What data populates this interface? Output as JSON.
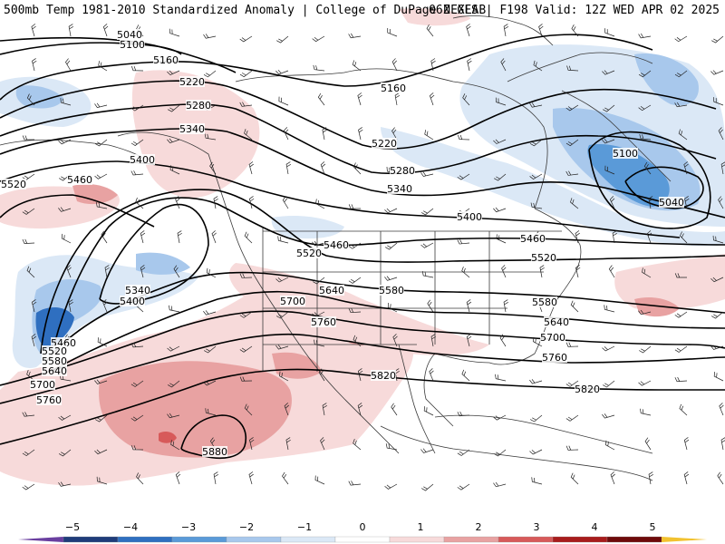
{
  "header": {
    "left": "500mb Temp 1981-2010 Standardized Anomaly | College of DuPage NEXLAB",
    "right": "06Z GFS | F198 Valid: 12Z WED APR 02 2025"
  },
  "colorbar": {
    "labels": [
      "−5",
      "−4",
      "−3",
      "−2",
      "−1",
      "0",
      "1",
      "2",
      "3",
      "4",
      "5"
    ],
    "colors": [
      "#6a3fa0",
      "#1f3c7a",
      "#2f6fc0",
      "#5a9ad8",
      "#a8c8ec",
      "#dbe8f6",
      "#ffffff",
      "#f7dada",
      "#e8a2a2",
      "#d75a5a",
      "#a81c1c",
      "#6e0a0a",
      "#f2c230"
    ]
  },
  "contours": [
    {
      "label": "5040"
    },
    {
      "label": "5100"
    },
    {
      "label": "5160"
    },
    {
      "label": "5220"
    },
    {
      "label": "5280"
    },
    {
      "label": "5340"
    },
    {
      "label": "5400"
    },
    {
      "label": "5460"
    },
    {
      "label": "5520"
    },
    {
      "label": "5580"
    },
    {
      "label": "5640"
    },
    {
      "label": "5700"
    },
    {
      "label": "5760"
    },
    {
      "label": "5820"
    },
    {
      "label": "5880"
    }
  ],
  "contour_labels": [
    {
      "text": "5040"
    },
    {
      "text": "5100"
    },
    {
      "text": "5160"
    },
    {
      "text": "5220"
    },
    {
      "text": "5280"
    },
    {
      "text": "5340"
    },
    {
      "text": "5400"
    },
    {
      "text": "5520"
    },
    {
      "text": "5460"
    },
    {
      "text": "5160"
    },
    {
      "text": "5220"
    },
    {
      "text": "5280"
    },
    {
      "text": "5340"
    },
    {
      "text": "5400"
    },
    {
      "text": "5460"
    },
    {
      "text": "5520"
    },
    {
      "text": "5580"
    },
    {
      "text": "5640"
    },
    {
      "text": "5700"
    },
    {
      "text": "5760"
    },
    {
      "text": "5820"
    },
    {
      "text": "5820"
    },
    {
      "text": "5880"
    },
    {
      "text": "5340"
    },
    {
      "text": "5400"
    },
    {
      "text": "5460"
    },
    {
      "text": "5520"
    },
    {
      "text": "5580"
    },
    {
      "text": "5640"
    },
    {
      "text": "5700"
    },
    {
      "text": "5760"
    },
    {
      "text": "5460"
    },
    {
      "text": "5520"
    },
    {
      "text": "5640"
    },
    {
      "text": "5700"
    },
    {
      "text": "5760"
    },
    {
      "text": "5580"
    },
    {
      "text": "5100"
    },
    {
      "text": "5040"
    }
  ]
}
